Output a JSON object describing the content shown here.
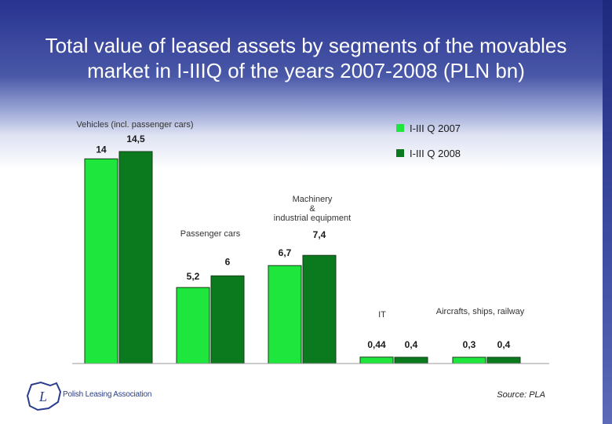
{
  "title": "Total value of leased assets by segments of the movables market in I-IIIQ of the years 2007-2008 (PLN bn)",
  "source": "Source: PLA",
  "logo_text": "Polish Leasing Association",
  "colors": {
    "series_2007": "#1ee63c",
    "series_2008": "#0b7a1e",
    "title_bg": "#27338f"
  },
  "chart_data": {
    "type": "bar",
    "title": "Total value of leased assets by segments of the movables market in I-IIIQ of the years 2007-2008 (PLN bn)",
    "categories": [
      "Vehicles (incl. passenger cars)",
      "Passenger cars",
      "Machinery & industrial equipment",
      "IT",
      "Aircrafts, ships, railway"
    ],
    "series": [
      {
        "name": "I-III Q 2007",
        "values": [
          14,
          5.2,
          6.7,
          0.44,
          0.3
        ],
        "labels": [
          "14",
          "5,2",
          "6,7",
          "0,44",
          "0,3"
        ]
      },
      {
        "name": "I-III Q 2008",
        "values": [
          14.5,
          6,
          7.4,
          0.4,
          0.4
        ],
        "labels": [
          "14,5",
          "6",
          "7,4",
          "0,4",
          "0,4"
        ]
      }
    ],
    "ylim": [
      0,
      14.5
    ],
    "grid": false,
    "legend_position": "top-right"
  }
}
